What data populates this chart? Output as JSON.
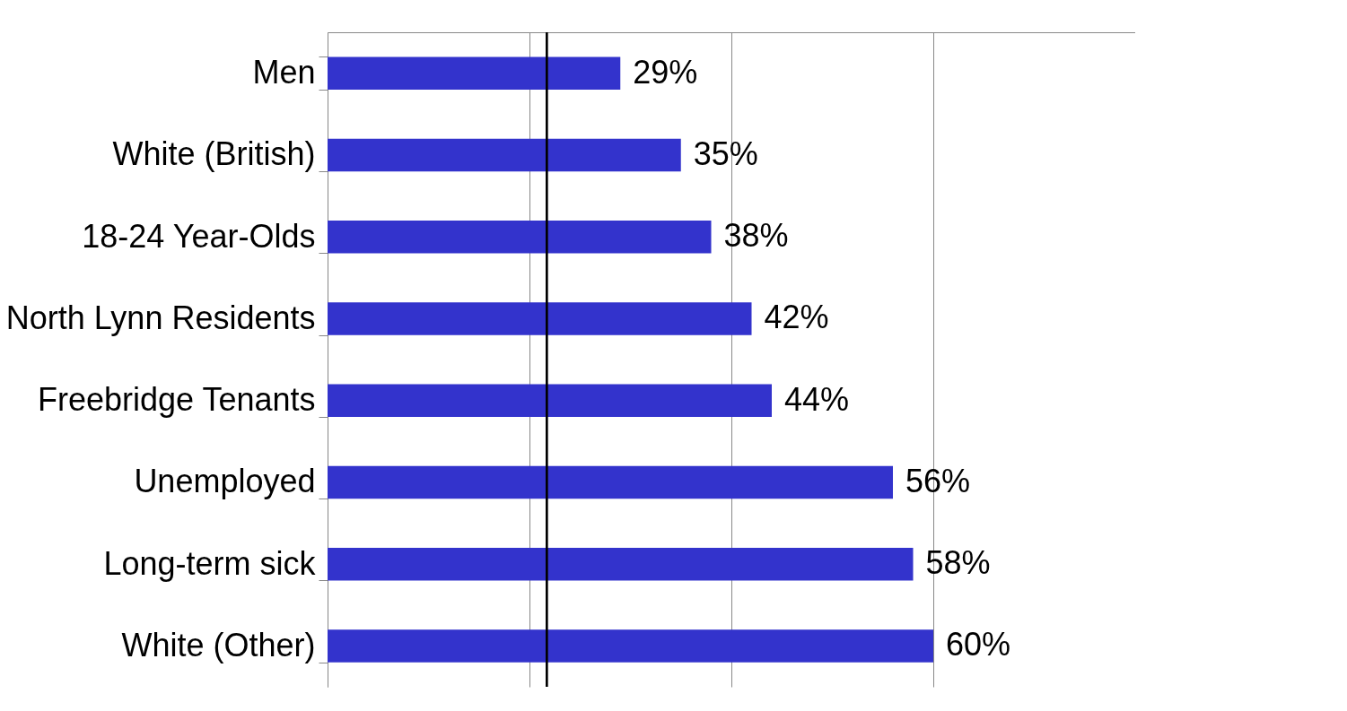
{
  "chart_data": {
    "type": "bar",
    "orientation": "horizontal",
    "categories": [
      "Men",
      "White (British)",
      "18-24 Year-Olds",
      "North Lynn Residents",
      "Freebridge Tenants",
      "Unemployed",
      "Long-term sick",
      "White (Other)"
    ],
    "values": [
      29,
      35,
      38,
      42,
      44,
      56,
      58,
      60
    ],
    "value_labels": [
      "29%",
      "35%",
      "38%",
      "42%",
      "44%",
      "56%",
      "58%",
      "60%"
    ],
    "color": "#3333cc",
    "xlim": [
      0,
      80
    ],
    "xticks": [
      {
        "value": 0,
        "label": null
      },
      {
        "value": 20,
        "label": null
      },
      {
        "value": 40,
        "label": null
      },
      {
        "value": 60,
        "label": null
      }
    ],
    "tick_labels": "y",
    "grid": "x",
    "ref_lines": [
      {
        "axis": "x",
        "value": 21.7,
        "color": "#000000"
      }
    ]
  }
}
